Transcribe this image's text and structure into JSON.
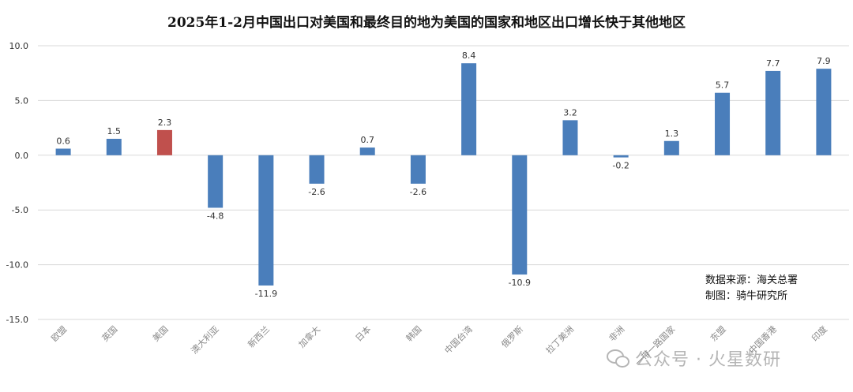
{
  "chart_data": {
    "type": "bar",
    "title": "2025年1-2月中国出口对美国和最终目的地为美国的国家和地区出口增长快于其他地区",
    "categories": [
      "欧盟",
      "英国",
      "美国",
      "澳大利亚",
      "新西兰",
      "加拿大",
      "日本",
      "韩国",
      "中国台湾",
      "俄罗斯",
      "拉丁美洲",
      "非洲",
      "一带一路国家",
      "东盟",
      "中国香港",
      "印度"
    ],
    "values": [
      0.6,
      1.5,
      2.3,
      -4.8,
      -11.9,
      -2.6,
      0.7,
      -2.6,
      8.4,
      -10.9,
      3.2,
      -0.2,
      1.3,
      5.7,
      7.7,
      7.9
    ],
    "value_labels": [
      "0.6",
      "1.5",
      "2.3",
      "-4.8",
      "-11.9",
      "-2.6",
      "0.7",
      "-2.6",
      "8.4",
      "-10.9",
      "3.2",
      "-0.2",
      "1.3",
      "5.7",
      "7.7",
      "7.9"
    ],
    "highlight_index": 2,
    "ylim": [
      -15,
      10
    ],
    "yticks": [
      10,
      5,
      0,
      -5,
      -10,
      -15
    ],
    "ytick_labels": [
      "10.0",
      "5.0",
      "0.0",
      "-5.0",
      "-10.0",
      "-15.0"
    ],
    "grid": true,
    "xlabel": "",
    "ylabel": "",
    "colors": {
      "bar": "#4a7ebb",
      "highlight": "#c0504d",
      "grid": "#d9d9d9"
    }
  },
  "source_note": {
    "line1": "数据来源：海关总署",
    "line2": "制图：骑牛研究所"
  },
  "watermark": {
    "icon": "wechat-icon",
    "text": "公众号 · 火星数研"
  }
}
